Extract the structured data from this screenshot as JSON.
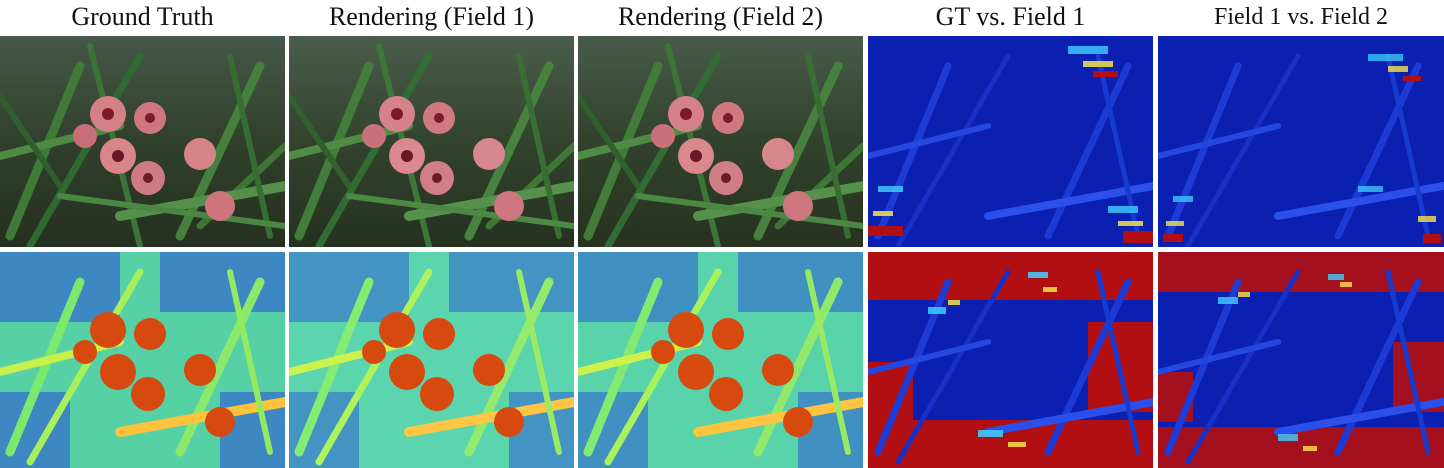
{
  "columns": [
    {
      "title": "Ground Truth"
    },
    {
      "title": "Rendering (Field 1)"
    },
    {
      "title": "Rendering (Field 2)"
    },
    {
      "title": "GT vs. Field 1"
    },
    {
      "title": "Field 1 vs. Field 2"
    }
  ],
  "rows": [
    {
      "content": "photograph of pink orchids among green leaves"
    },
    {
      "content": "false-color map of the same scene"
    }
  ],
  "colors": {
    "photo_bg": "#2f3a28",
    "leaf": "#3f7a37",
    "orchid": "#d57f86",
    "error_bg": "#0b1fb0",
    "error_hot": "#b10f12",
    "depth_bg": "#56d1a5",
    "depth_flower": "#d64a0f"
  }
}
